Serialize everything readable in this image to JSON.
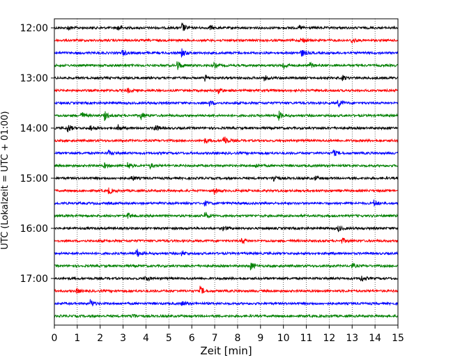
{
  "chart_data": {
    "type": "line",
    "title": "",
    "xlabel": "Zeit  [min]",
    "ylabel": "UTC (Lokalzeit = UTC + 01:00)",
    "xlim": [
      0,
      15
    ],
    "x_ticks": [
      "0",
      "1",
      "2",
      "3",
      "4",
      "5",
      "6",
      "7",
      "8",
      "9",
      "10",
      "11",
      "12",
      "13",
      "14",
      "15"
    ],
    "y_ticks": [
      {
        "label": "12:00",
        "row": 0
      },
      {
        "label": "13:00",
        "row": 4
      },
      {
        "label": "14:00",
        "row": 8
      },
      {
        "label": "15:00",
        "row": 12
      },
      {
        "label": "16:00",
        "row": 16
      },
      {
        "label": "17:00",
        "row": 20
      }
    ],
    "grid": "vertical-dotted",
    "row_minutes": 15,
    "trace_colors": [
      "#000000",
      "#ff0000",
      "#0000ff",
      "#008000"
    ],
    "traces": [
      {
        "start": "12:00",
        "events": [
          [
            0.6,
            3
          ],
          [
            2.8,
            4
          ],
          [
            5.6,
            6
          ],
          [
            6.8,
            3
          ],
          [
            10.7,
            3
          ]
        ]
      },
      {
        "start": "12:15",
        "events": [
          [
            10.8,
            5
          ],
          [
            13.0,
            4
          ]
        ]
      },
      {
        "start": "12:30",
        "events": [
          [
            3.0,
            4
          ],
          [
            5.6,
            5
          ],
          [
            10.8,
            5
          ]
        ]
      },
      {
        "start": "12:45",
        "events": [
          [
            5.4,
            6
          ],
          [
            7.0,
            3
          ],
          [
            10.0,
            5
          ],
          [
            11.2,
            3
          ]
        ]
      },
      {
        "start": "13:00",
        "events": [
          [
            6.6,
            4
          ],
          [
            9.2,
            3
          ],
          [
            12.6,
            3
          ]
        ]
      },
      {
        "start": "13:15",
        "events": [
          [
            3.2,
            3
          ],
          [
            7.2,
            4
          ]
        ]
      },
      {
        "start": "13:30",
        "events": [
          [
            6.8,
            3
          ],
          [
            12.4,
            6
          ]
        ]
      },
      {
        "start": "13:45",
        "events": [
          [
            1.2,
            5
          ],
          [
            2.2,
            6
          ],
          [
            3.8,
            5
          ],
          [
            9.8,
            6
          ]
        ]
      },
      {
        "start": "14:00",
        "events": [
          [
            0.6,
            6
          ],
          [
            1.6,
            4
          ],
          [
            2.8,
            4
          ],
          [
            4.4,
            5
          ]
        ]
      },
      {
        "start": "14:15",
        "events": [
          [
            6.6,
            3
          ],
          [
            7.4,
            8
          ]
        ]
      },
      {
        "start": "14:30",
        "events": [
          [
            2.4,
            3
          ],
          [
            12.2,
            4
          ]
        ]
      },
      {
        "start": "14:45",
        "events": [
          [
            2.2,
            3
          ],
          [
            3.2,
            5
          ],
          [
            4.2,
            3
          ],
          [
            8.8,
            3
          ]
        ]
      },
      {
        "start": "15:00",
        "events": [
          [
            3.4,
            3
          ],
          [
            9.6,
            5
          ],
          [
            11.4,
            3
          ]
        ]
      },
      {
        "start": "15:15",
        "events": [
          [
            2.4,
            4
          ],
          [
            7.0,
            4
          ]
        ]
      },
      {
        "start": "15:30",
        "events": [
          [
            6.6,
            3
          ],
          [
            14.0,
            4
          ]
        ]
      },
      {
        "start": "15:45",
        "events": [
          [
            3.2,
            4
          ],
          [
            6.6,
            5
          ]
        ]
      },
      {
        "start": "16:00",
        "events": [
          [
            7.4,
            3
          ],
          [
            12.4,
            4
          ]
        ]
      },
      {
        "start": "16:15",
        "events": [
          [
            8.2,
            4
          ],
          [
            12.6,
            3
          ]
        ]
      },
      {
        "start": "16:30",
        "events": [
          [
            3.6,
            6
          ],
          [
            5.6,
            3
          ]
        ]
      },
      {
        "start": "16:45",
        "events": [
          [
            8.6,
            5
          ],
          [
            13.0,
            3
          ]
        ]
      },
      {
        "start": "17:00",
        "events": [
          [
            4.0,
            4
          ],
          [
            13.4,
            5
          ]
        ]
      },
      {
        "start": "17:15",
        "events": [
          [
            1.0,
            3
          ],
          [
            6.4,
            6
          ]
        ]
      },
      {
        "start": "17:30",
        "events": [
          [
            1.6,
            5
          ],
          [
            5.6,
            3
          ]
        ]
      },
      {
        "start": "17:45",
        "events": [
          [
            3.4,
            4
          ]
        ]
      }
    ]
  }
}
